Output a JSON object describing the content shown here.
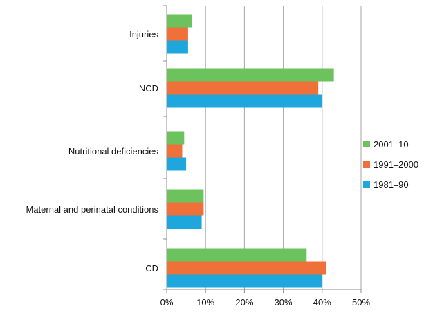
{
  "chart_data": {
    "type": "bar",
    "orientation": "horizontal",
    "categories": [
      "Injuries",
      "NCD",
      "Nutritional deficiencies",
      "Maternal and perinatal conditions",
      "CD"
    ],
    "series": [
      {
        "name": "2001–10",
        "color": "#6cc35e",
        "values": [
          6.5,
          43,
          4.5,
          9.5,
          36
        ]
      },
      {
        "name": "1991–2000",
        "color": "#f0703a",
        "values": [
          5.5,
          39,
          4,
          9.5,
          41
        ]
      },
      {
        "name": "1981–90",
        "color": "#1ea7dc",
        "values": [
          5.5,
          40,
          5,
          9,
          40
        ]
      }
    ],
    "xlim": [
      0,
      50
    ],
    "xticks": [
      "0%",
      "10%",
      "20%",
      "30%",
      "40%",
      "50%"
    ],
    "grid": true,
    "legend_position": "right"
  }
}
